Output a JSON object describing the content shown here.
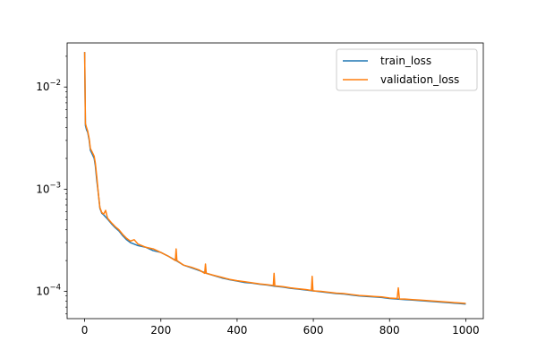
{
  "chart_data": {
    "type": "line",
    "title": "",
    "xlabel": "",
    "ylabel": "",
    "y_scale": "log",
    "xlim": [
      -46,
      1046
    ],
    "ylim": [
      5.4e-05,
      0.027
    ],
    "x_ticks": [
      0,
      200,
      400,
      600,
      800,
      1000
    ],
    "y_ticks": [
      {
        "value": 0.01,
        "base": "10",
        "exp": "−2"
      },
      {
        "value": 0.001,
        "base": "10",
        "exp": "−3"
      },
      {
        "value": 0.0001,
        "base": "10",
        "exp": "−4"
      }
    ],
    "grid": false,
    "legend_position": "top-right",
    "series": [
      {
        "name": "train_loss",
        "color": "#1f77b4",
        "points": [
          [
            0,
            0.022
          ],
          [
            2,
            0.0042
          ],
          [
            5,
            0.0038
          ],
          [
            8,
            0.0036
          ],
          [
            12,
            0.003
          ],
          [
            15,
            0.0024
          ],
          [
            20,
            0.0022
          ],
          [
            25,
            0.002
          ],
          [
            28,
            0.0017
          ],
          [
            32,
            0.0012
          ],
          [
            36,
            0.0009
          ],
          [
            40,
            0.00065
          ],
          [
            45,
            0.00058
          ],
          [
            50,
            0.00056
          ],
          [
            60,
            0.00051
          ],
          [
            70,
            0.00046
          ],
          [
            80,
            0.00042
          ],
          [
            90,
            0.00039
          ],
          [
            100,
            0.00035
          ],
          [
            110,
            0.00032
          ],
          [
            120,
            0.0003
          ],
          [
            140,
            0.00028
          ],
          [
            160,
            0.00027
          ],
          [
            180,
            0.00025
          ],
          [
            200,
            0.00024
          ],
          [
            220,
            0.00022
          ],
          [
            240,
            0.0002
          ],
          [
            260,
            0.00018
          ],
          [
            280,
            0.00017
          ],
          [
            300,
            0.00016
          ],
          [
            320,
            0.00015
          ],
          [
            340,
            0.000142
          ],
          [
            360,
            0.000135
          ],
          [
            380,
            0.00013
          ],
          [
            400,
            0.000126
          ],
          [
            420,
            0.000122
          ],
          [
            440,
            0.00012
          ],
          [
            460,
            0.000117
          ],
          [
            480,
            0.000115
          ],
          [
            500,
            0.000112
          ],
          [
            520,
            0.00011
          ],
          [
            540,
            0.000107
          ],
          [
            560,
            0.000105
          ],
          [
            580,
            0.000103
          ],
          [
            600,
            0.000101
          ],
          [
            620,
            9.9e-05
          ],
          [
            640,
            9.7e-05
          ],
          [
            660,
            9.5e-05
          ],
          [
            680,
            9.4e-05
          ],
          [
            700,
            9.2e-05
          ],
          [
            720,
            9e-05
          ],
          [
            740,
            8.9e-05
          ],
          [
            760,
            8.8e-05
          ],
          [
            780,
            8.7e-05
          ],
          [
            800,
            8.5e-05
          ],
          [
            820,
            8.4e-05
          ],
          [
            840,
            8.3e-05
          ],
          [
            860,
            8.2e-05
          ],
          [
            880,
            8.1e-05
          ],
          [
            900,
            8e-05
          ],
          [
            920,
            7.9e-05
          ],
          [
            940,
            7.8e-05
          ],
          [
            960,
            7.7e-05
          ],
          [
            980,
            7.6e-05
          ],
          [
            1000,
            7.5e-05
          ]
        ]
      },
      {
        "name": "validation_loss",
        "color": "#ff7f0e",
        "points": [
          [
            0,
            0.022
          ],
          [
            2,
            0.0044
          ],
          [
            5,
            0.004
          ],
          [
            8,
            0.0037
          ],
          [
            12,
            0.0031
          ],
          [
            15,
            0.0025
          ],
          [
            20,
            0.0023
          ],
          [
            25,
            0.0021
          ],
          [
            28,
            0.0018
          ],
          [
            32,
            0.0013
          ],
          [
            36,
            0.0009
          ],
          [
            40,
            0.00066
          ],
          [
            45,
            0.00059
          ],
          [
            50,
            0.00057
          ],
          [
            55,
            0.00062
          ],
          [
            60,
            0.00052
          ],
          [
            70,
            0.00047
          ],
          [
            80,
            0.00043
          ],
          [
            90,
            0.0004
          ],
          [
            100,
            0.00036
          ],
          [
            110,
            0.00033
          ],
          [
            120,
            0.00031
          ],
          [
            130,
            0.00032
          ],
          [
            140,
            0.00029
          ],
          [
            160,
            0.00027
          ],
          [
            180,
            0.00026
          ],
          [
            200,
            0.00024
          ],
          [
            220,
            0.00022
          ],
          [
            238,
            0.0002
          ],
          [
            240,
            0.00026
          ],
          [
            242,
            0.0002
          ],
          [
            260,
            0.00018
          ],
          [
            280,
            0.000172
          ],
          [
            300,
            0.000162
          ],
          [
            315,
            0.00015
          ],
          [
            317,
            0.000185
          ],
          [
            319,
            0.00015
          ],
          [
            340,
            0.000143
          ],
          [
            360,
            0.000137
          ],
          [
            380,
            0.000131
          ],
          [
            400,
            0.000127
          ],
          [
            420,
            0.000124
          ],
          [
            440,
            0.000121
          ],
          [
            460,
            0.000118
          ],
          [
            480,
            0.000116
          ],
          [
            495,
            0.000114
          ],
          [
            497,
            0.00015
          ],
          [
            499,
            0.000113
          ],
          [
            520,
            0.000111
          ],
          [
            540,
            0.000108
          ],
          [
            560,
            0.000106
          ],
          [
            580,
            0.000104
          ],
          [
            595,
            0.000102
          ],
          [
            597,
            0.00014
          ],
          [
            599,
            0.000101
          ],
          [
            620,
            0.0001
          ],
          [
            640,
            9.8e-05
          ],
          [
            660,
            9.6e-05
          ],
          [
            680,
            9.5e-05
          ],
          [
            700,
            9.3e-05
          ],
          [
            720,
            9.1e-05
          ],
          [
            740,
            9e-05
          ],
          [
            760,
            8.9e-05
          ],
          [
            780,
            8.8e-05
          ],
          [
            800,
            8.6e-05
          ],
          [
            820,
            8.5e-05
          ],
          [
            823,
            0.000108
          ],
          [
            826,
            8.4e-05
          ],
          [
            840,
            8.4e-05
          ],
          [
            860,
            8.3e-05
          ],
          [
            880,
            8.2e-05
          ],
          [
            900,
            8.1e-05
          ],
          [
            920,
            8e-05
          ],
          [
            940,
            7.9e-05
          ],
          [
            960,
            7.8e-05
          ],
          [
            980,
            7.7e-05
          ],
          [
            1000,
            7.6e-05
          ]
        ]
      }
    ]
  }
}
